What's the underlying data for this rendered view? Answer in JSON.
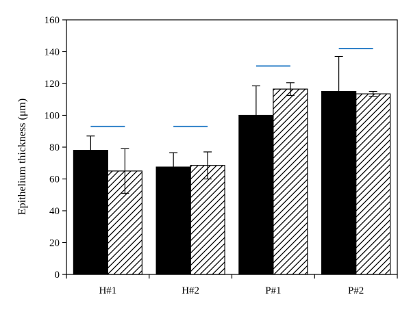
{
  "chart_data": {
    "type": "bar",
    "title": "",
    "xlabel": "",
    "ylabel": "Epithelium thickness (μm)",
    "ylim": [
      0,
      160
    ],
    "yticks": [
      0,
      20,
      40,
      60,
      80,
      100,
      120,
      140,
      160
    ],
    "categories": [
      "H#1",
      "H#2",
      "P#1",
      "P#2"
    ],
    "series": [
      {
        "values": [
          78,
          67.5,
          100,
          115
        ],
        "errors": [
          9,
          9,
          18.5,
          22
        ],
        "color": "#000000",
        "fill": "solid"
      },
      {
        "values": [
          65,
          68.5,
          116.5,
          113.5
        ],
        "errors": [
          14,
          8.5,
          4,
          1.5
        ],
        "color": "#000000",
        "fill": "diagonal-hatch"
      }
    ],
    "reference_lines": {
      "values": [
        93,
        93,
        131,
        142
      ],
      "color": "#1f77c4"
    },
    "grid": false,
    "legend": "none"
  }
}
